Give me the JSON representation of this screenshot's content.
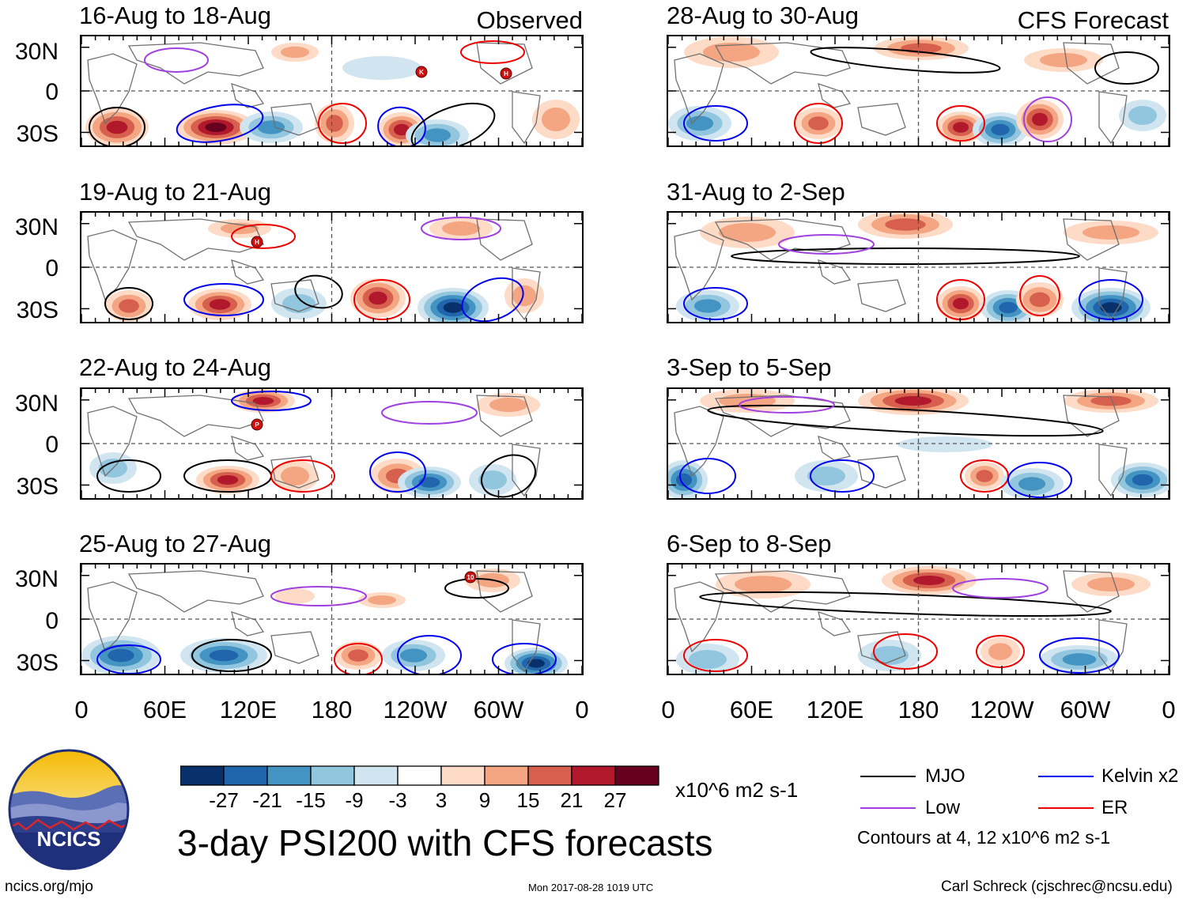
{
  "panels": [
    {
      "title": "16-Aug to 18-Aug",
      "tag": "Observed"
    },
    {
      "title": "19-Aug to 21-Aug",
      "tag": ""
    },
    {
      "title": "22-Aug to 24-Aug",
      "tag": ""
    },
    {
      "title": "25-Aug to 27-Aug",
      "tag": ""
    },
    {
      "title": "28-Aug to 30-Aug",
      "tag": "CFS Forecast"
    },
    {
      "title": "31-Aug to 2-Sep",
      "tag": ""
    },
    {
      "title": "3-Sep to 5-Sep",
      "tag": ""
    },
    {
      "title": "6-Sep to 8-Sep",
      "tag": ""
    }
  ],
  "y_ticks": [
    "30N",
    "0",
    "30S"
  ],
  "x_ticks": [
    "0",
    "60E",
    "120E",
    "180",
    "120W",
    "60W",
    "0"
  ],
  "storm_markers": [
    {
      "panel": 0,
      "label": "K"
    },
    {
      "panel": 0,
      "label": "H"
    },
    {
      "panel": 1,
      "label": "H"
    },
    {
      "panel": 2,
      "label": "P"
    },
    {
      "panel": 3,
      "label": "10"
    }
  ],
  "colorbar": {
    "labels": [
      "-27",
      "-21",
      "-15",
      "-9",
      "-3",
      "3",
      "9",
      "15",
      "21",
      "27"
    ],
    "colors": [
      "#08306b",
      "#2166ac",
      "#4393c3",
      "#92c5de",
      "#d1e5f0",
      "#ffffff",
      "#fddbc7",
      "#f4a582",
      "#d6604d",
      "#b2182b",
      "#67001f"
    ],
    "units": "x10^6 m2 s-1"
  },
  "legend": {
    "items": [
      {
        "label": "MJO",
        "color": "#000000"
      },
      {
        "label": "Kelvin x2",
        "color": "#0000ee"
      },
      {
        "label": "Low",
        "color": "#a040e0"
      },
      {
        "label": "ER",
        "color": "#ee0000"
      }
    ],
    "note": "Contours at 4, 12 x10^6 m2 s-1"
  },
  "logo": {
    "text": "NCICS"
  },
  "main_title": "3-day PSI200 with CFS forecasts",
  "footer": {
    "url": "ncics.org/mjo",
    "timestamp": "Mon 2017-08-28 1019 UTC",
    "author": "Carl Schreck (cjschrec@ncsu.edu)"
  }
}
